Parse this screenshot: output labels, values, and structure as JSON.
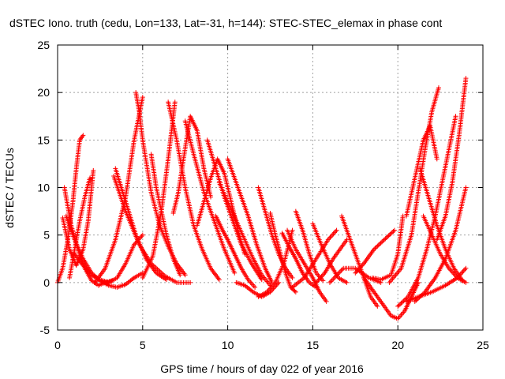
{
  "chart_data": {
    "type": "scatter",
    "title": "dSTEC Iono. truth (cedu, Lon=133, Lat=-31, h=144): STEC-STEC_elemax in phase cont",
    "xlabel": "GPS time / hours of day 022 of year 2016",
    "ylabel": "dSTEC  / TECUs",
    "xlim": [
      0,
      25
    ],
    "ylim": [
      -5,
      25
    ],
    "xticks": [
      "0",
      "5",
      "10",
      "15",
      "20",
      "25"
    ],
    "yticks": [
      "-5",
      "0",
      "5",
      "10",
      "15",
      "20",
      "25"
    ],
    "grid": true,
    "legend": "none",
    "marker": "plus",
    "color": "#ff0000",
    "series": [
      {
        "x": [
          0.0,
          0.3,
          0.6,
          0.9,
          1.1,
          1.3,
          1.5
        ],
        "y": [
          0.0,
          1.5,
          4.5,
          8.5,
          12.0,
          15.0,
          15.5
        ]
      },
      {
        "x": [
          0.4,
          0.8,
          1.2,
          1.6,
          2.0,
          2.4,
          2.8,
          3.2
        ],
        "y": [
          10.0,
          6.0,
          3.5,
          1.5,
          0.2,
          -0.3,
          0.0,
          0.2
        ]
      },
      {
        "x": [
          0.3,
          0.7,
          1.1,
          1.5,
          1.8,
          2.1
        ],
        "y": [
          6.8,
          3.5,
          1.8,
          3.5,
          6.5,
          11.8
        ]
      },
      {
        "x": [
          0.5,
          1.0,
          1.5,
          2.0,
          2.5,
          3.0
        ],
        "y": [
          7.0,
          4.5,
          2.5,
          1.0,
          0.2,
          0.0
        ]
      },
      {
        "x": [
          0.7,
          1.0,
          1.3,
          1.6,
          1.9
        ],
        "y": [
          0.5,
          3.5,
          6.5,
          9.0,
          11.0
        ]
      },
      {
        "x": [
          1.0,
          1.5,
          2.0,
          2.5,
          3.0,
          3.5,
          4.0,
          4.5,
          5.0
        ],
        "y": [
          3.0,
          1.8,
          0.8,
          0.2,
          -0.3,
          -0.5,
          -0.2,
          0.5,
          1.0
        ]
      },
      {
        "x": [
          2.2,
          2.8,
          3.4,
          4.0,
          4.5,
          5.0
        ],
        "y": [
          0.0,
          1.5,
          4.5,
          9.0,
          15.0,
          19.5
        ]
      },
      {
        "x": [
          3.3,
          4.0,
          4.8,
          5.5,
          6.3,
          7.0,
          7.8
        ],
        "y": [
          11.2,
          7.5,
          4.0,
          2.0,
          0.7,
          0.0,
          0.0
        ]
      },
      {
        "x": [
          3.4,
          4.0,
          4.6,
          5.2,
          5.8,
          6.4
        ],
        "y": [
          12.0,
          8.5,
          5.0,
          2.5,
          1.0,
          0.3
        ]
      },
      {
        "x": [
          2.5,
          3.0,
          3.5,
          4.0,
          4.5,
          5.0
        ],
        "y": [
          0.3,
          0.0,
          0.5,
          2.0,
          4.0,
          5.0
        ]
      },
      {
        "x": [
          4.6,
          4.8,
          5.0,
          5.5,
          6.0,
          6.5,
          7.0,
          7.5
        ],
        "y": [
          20.0,
          18.0,
          15.0,
          9.5,
          6.0,
          3.8,
          2.0,
          0.8
        ]
      },
      {
        "x": [
          5.0,
          5.6,
          6.1,
          6.5,
          6.9
        ],
        "y": [
          0.5,
          2.8,
          7.5,
          13.0,
          19.0
        ]
      },
      {
        "x": [
          6.5,
          7.0,
          7.5,
          8.0,
          8.5,
          9.0,
          9.5
        ],
        "y": [
          19.0,
          15.0,
          10.0,
          6.0,
          3.5,
          1.5,
          0.3
        ]
      },
      {
        "x": [
          5.5,
          5.8,
          6.1,
          6.4,
          6.8,
          7.2
        ],
        "y": [
          13.5,
          10.0,
          7.5,
          5.0,
          2.5,
          0.8
        ]
      },
      {
        "x": [
          6.8,
          7.1,
          7.4,
          7.8,
          8.2,
          8.6,
          9.0
        ],
        "y": [
          7.3,
          9.5,
          13.0,
          17.5,
          16.0,
          12.0,
          9.0
        ]
      },
      {
        "x": [
          7.5,
          8.0,
          8.6,
          9.2,
          9.8,
          10.4
        ],
        "y": [
          17.0,
          13.5,
          9.5,
          6.5,
          3.5,
          1.0
        ]
      },
      {
        "x": [
          8.2,
          8.6,
          9.0,
          9.4,
          9.8,
          10.2,
          10.6,
          11.0
        ],
        "y": [
          6.0,
          8.5,
          11.0,
          13.0,
          11.5,
          8.5,
          5.5,
          3.0
        ]
      },
      {
        "x": [
          8.8,
          9.3,
          9.8,
          10.3,
          10.8,
          11.4,
          12.0
        ],
        "y": [
          15.0,
          12.0,
          9.0,
          6.5,
          4.0,
          2.0,
          0.3
        ]
      },
      {
        "x": [
          9.5,
          10.0,
          10.5,
          11.0,
          11.5,
          12.0,
          12.5
        ],
        "y": [
          10.5,
          8.5,
          6.5,
          4.5,
          2.5,
          0.8,
          -0.3
        ]
      },
      {
        "x": [
          9.3,
          9.7,
          10.0,
          10.4,
          10.8,
          11.2,
          11.6
        ],
        "y": [
          7.0,
          5.5,
          4.5,
          3.0,
          1.5,
          0.3,
          -0.5
        ]
      },
      {
        "x": [
          10.0,
          10.6,
          11.2,
          11.7,
          12.2,
          12.6
        ],
        "y": [
          13.0,
          10.0,
          7.0,
          4.0,
          1.5,
          0.0
        ]
      },
      {
        "x": [
          11.8,
          12.2,
          12.6,
          13.0,
          13.4,
          13.8
        ],
        "y": [
          10.0,
          7.5,
          5.0,
          3.0,
          1.5,
          0.5
        ]
      },
      {
        "x": [
          12.5,
          12.8,
          13.1,
          13.4,
          13.7,
          14.0
        ],
        "y": [
          7.3,
          5.0,
          3.0,
          1.0,
          -0.5,
          -1.0
        ]
      },
      {
        "x": [
          13.2,
          13.6,
          14.0,
          14.4,
          14.8,
          15.2
        ],
        "y": [
          5.2,
          3.8,
          2.5,
          1.0,
          0.0,
          -0.5
        ]
      },
      {
        "x": [
          10.5,
          11.0,
          11.5,
          12.0,
          12.5,
          13.0
        ],
        "y": [
          0.0,
          -0.3,
          -1.0,
          -1.5,
          -1.0,
          0.0
        ]
      },
      {
        "x": [
          11.8,
          12.3,
          12.8,
          13.3,
          13.8
        ],
        "y": [
          -1.5,
          -1.0,
          0.0,
          2.0,
          5.5
        ]
      },
      {
        "x": [
          13.5,
          14.0,
          14.5,
          15.0,
          15.4,
          15.8
        ],
        "y": [
          5.5,
          3.5,
          2.0,
          0.5,
          -1.0,
          -2.0
        ]
      },
      {
        "x": [
          13.8,
          14.5,
          15.2,
          15.9,
          16.4
        ],
        "y": [
          -0.5,
          0.5,
          2.5,
          4.5,
          5.5
        ]
      },
      {
        "x": [
          14.0,
          14.4,
          14.8,
          15.2,
          15.6
        ],
        "y": [
          7.5,
          5.5,
          3.0,
          1.0,
          0.2
        ]
      },
      {
        "x": [
          15.0,
          15.5,
          16.0,
          16.5,
          17.0
        ],
        "y": [
          6.2,
          4.0,
          2.0,
          0.5,
          0.0
        ]
      },
      {
        "x": [
          15.2,
          15.7,
          16.2,
          16.6,
          17.0
        ],
        "y": [
          0.0,
          1.0,
          2.5,
          3.5,
          4.5
        ]
      },
      {
        "x": [
          16.7,
          17.2,
          17.6,
          18.0,
          18.4,
          18.8
        ],
        "y": [
          7.0,
          4.5,
          2.5,
          0.5,
          -1.5,
          -2.5
        ]
      },
      {
        "x": [
          16.0,
          16.8,
          17.5,
          18.3,
          19.0
        ],
        "y": [
          0.0,
          1.5,
          1.5,
          0.5,
          0.0
        ]
      },
      {
        "x": [
          17.5,
          18.0,
          18.6,
          19.2,
          19.8
        ],
        "y": [
          1.0,
          2.0,
          3.5,
          4.5,
          5.5
        ]
      },
      {
        "x": [
          18.0,
          18.6,
          19.2,
          19.6,
          20.0,
          20.4,
          20.8,
          21.2
        ],
        "y": [
          0.5,
          -1.0,
          -2.5,
          -3.5,
          -3.8,
          -3.0,
          -1.5,
          0.0
        ]
      },
      {
        "x": [
          18.5,
          19.0,
          19.6,
          20.0,
          20.3
        ],
        "y": [
          0.5,
          0.3,
          0.8,
          3.0,
          7.0
        ]
      },
      {
        "x": [
          19.5,
          20.2,
          20.8,
          21.2,
          21.6,
          22.0,
          22.4
        ],
        "y": [
          0.0,
          1.5,
          5.0,
          9.5,
          14.0,
          18.0,
          20.5
        ]
      },
      {
        "x": [
          20.0,
          20.6,
          21.2,
          21.7,
          22.2,
          22.6,
          23.0,
          23.4
        ],
        "y": [
          -2.5,
          -1.5,
          0.5,
          3.5,
          7.0,
          10.5,
          14.0,
          17.5
        ]
      },
      {
        "x": [
          20.5,
          21.0,
          21.5,
          21.9,
          22.3
        ],
        "y": [
          7.0,
          11.0,
          15.0,
          16.5,
          13.0
        ]
      },
      {
        "x": [
          21.3,
          21.8,
          22.3,
          22.8,
          23.3,
          23.8
        ],
        "y": [
          12.0,
          9.0,
          6.0,
          3.5,
          1.5,
          0.2
        ]
      },
      {
        "x": [
          22.3,
          22.8,
          23.2,
          23.6,
          24.0
        ],
        "y": [
          4.5,
          7.0,
          10.5,
          15.5,
          21.5
        ]
      },
      {
        "x": [
          21.5,
          22.0,
          22.5,
          23.0,
          23.5,
          24.0
        ],
        "y": [
          7.0,
          5.0,
          3.0,
          1.5,
          0.5,
          0.0
        ]
      },
      {
        "x": [
          21.0,
          21.6,
          22.2,
          22.8,
          23.4,
          24.0
        ],
        "y": [
          -2.0,
          -1.0,
          0.5,
          2.5,
          5.5,
          10.0
        ]
      },
      {
        "x": [
          20.5,
          21.2,
          22.0,
          22.8,
          23.5,
          24.0
        ],
        "y": [
          -2.0,
          -1.5,
          -1.0,
          -0.3,
          0.5,
          1.5
        ]
      }
    ]
  }
}
